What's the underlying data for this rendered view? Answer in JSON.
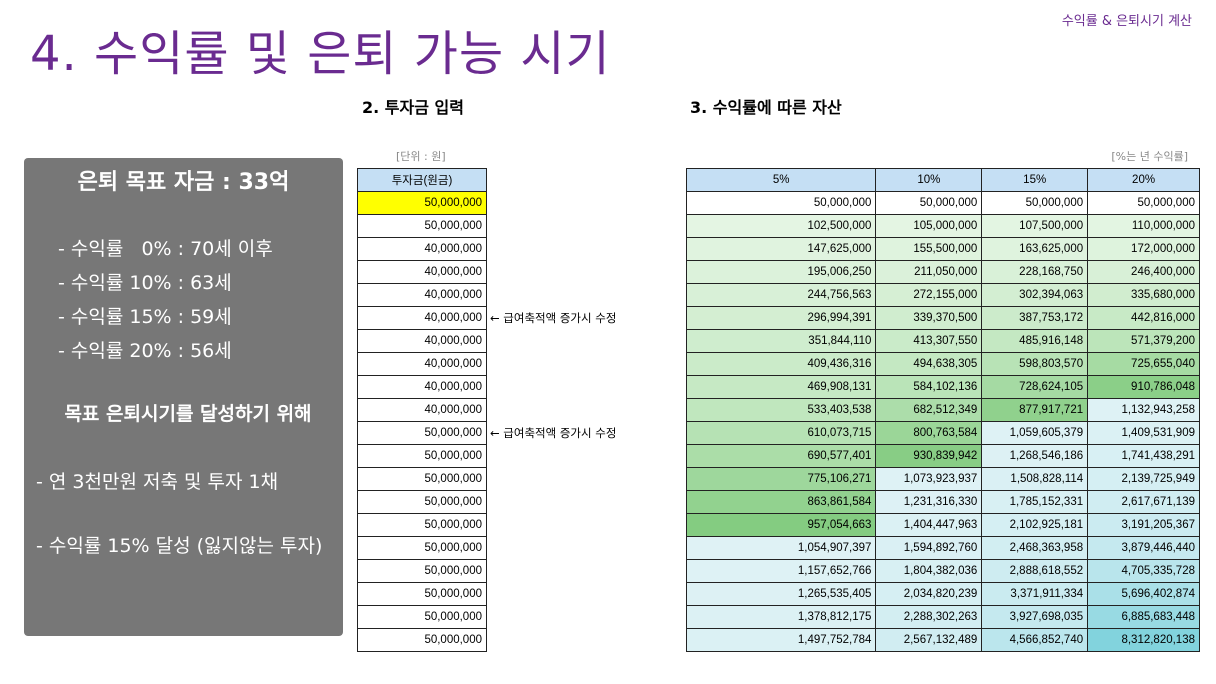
{
  "header": {
    "title": "4. 수익률 및 은퇴 가능 시기",
    "top_right": "수익률 & 은퇴시기 계산"
  },
  "goal_box": {
    "title": "은퇴 목표 자금 : 33억",
    "rates": [
      "- 수익률   0% : 70세 이후",
      "- 수익률 10% : 63세",
      "- 수익률 15% : 59세",
      "- 수익률 20% : 56세"
    ],
    "subhead": "목표 은퇴시기를 달성하기 위해",
    "plan1": " - 연 3천만원 저축 및 투자 1채",
    "plan2": " - 수익률 15% 달성 (잃지않는 투자)"
  },
  "section2": {
    "title": "2. 투자금 입력",
    "unit": "[단위 : 원]",
    "header": "투자금(원금)",
    "values": [
      "50,000,000",
      "50,000,000",
      "40,000,000",
      "40,000,000",
      "40,000,000",
      "40,000,000",
      "40,000,000",
      "40,000,000",
      "40,000,000",
      "40,000,000",
      "50,000,000",
      "50,000,000",
      "50,000,000",
      "50,000,000",
      "50,000,000",
      "50,000,000",
      "50,000,000",
      "50,000,000",
      "50,000,000",
      "50,000,000"
    ],
    "notes": [
      {
        "row": 5,
        "text": "← 급여축적액 증가시 수정"
      },
      {
        "row": 10,
        "text": "← 급여축적액 증가시 수정"
      }
    ],
    "highlight_color": "#ffff00"
  },
  "section3": {
    "title": "3. 수익률에 따른 자산",
    "unit": "[%는 년 수익률]",
    "headers": [
      "5%",
      "10%",
      "15%",
      "20%"
    ],
    "rows": [
      [
        "50,000,000",
        "50,000,000",
        "50,000,000",
        "50,000,000"
      ],
      [
        "102,500,000",
        "105,000,000",
        "107,500,000",
        "110,000,000"
      ],
      [
        "147,625,000",
        "155,500,000",
        "163,625,000",
        "172,000,000"
      ],
      [
        "195,006,250",
        "211,050,000",
        "228,168,750",
        "246,400,000"
      ],
      [
        "244,756,563",
        "272,155,000",
        "302,394,063",
        "335,680,000"
      ],
      [
        "296,994,391",
        "339,370,500",
        "387,753,172",
        "442,816,000"
      ],
      [
        "351,844,110",
        "413,307,550",
        "485,916,148",
        "571,379,200"
      ],
      [
        "409,436,316",
        "494,638,305",
        "598,803,570",
        "725,655,040"
      ],
      [
        "469,908,131",
        "584,102,136",
        "728,624,105",
        "910,786,048"
      ],
      [
        "533,403,538",
        "682,512,349",
        "877,917,721",
        "1,132,943,258"
      ],
      [
        "610,073,715",
        "800,763,584",
        "1,059,605,379",
        "1,409,531,909"
      ],
      [
        "690,577,401",
        "930,839,942",
        "1,268,546,186",
        "1,741,438,291"
      ],
      [
        "775,106,271",
        "1,073,923,937",
        "1,508,828,114",
        "2,139,725,949"
      ],
      [
        "863,861,584",
        "1,231,316,330",
        "1,785,152,331",
        "2,617,671,139"
      ],
      [
        "957,054,663",
        "1,404,447,963",
        "2,102,925,181",
        "3,191,205,367"
      ],
      [
        "1,054,907,397",
        "1,594,892,760",
        "2,468,363,958",
        "3,879,446,440"
      ],
      [
        "1,157,652,766",
        "1,804,382,036",
        "2,888,618,552",
        "4,705,335,728"
      ],
      [
        "1,265,535,405",
        "2,034,820,239",
        "3,371,911,334",
        "5,696,402,874"
      ],
      [
        "1,378,812,175",
        "2,288,302,263",
        "3,927,698,035",
        "6,885,683,448"
      ],
      [
        "1,497,752,784",
        "2,567,132,489",
        "4,566,852,740",
        "8,312,820,138"
      ]
    ],
    "colors": {
      "green_light": "#e4f5e3",
      "green_mid": "#bfe6bd",
      "green_dark": "#7ec97b",
      "blue_light": "#dff2f5",
      "blue_mid": "#c4e9ef",
      "blue_dark": "#7fd2dc",
      "header_blue": "#c5dff4"
    }
  }
}
